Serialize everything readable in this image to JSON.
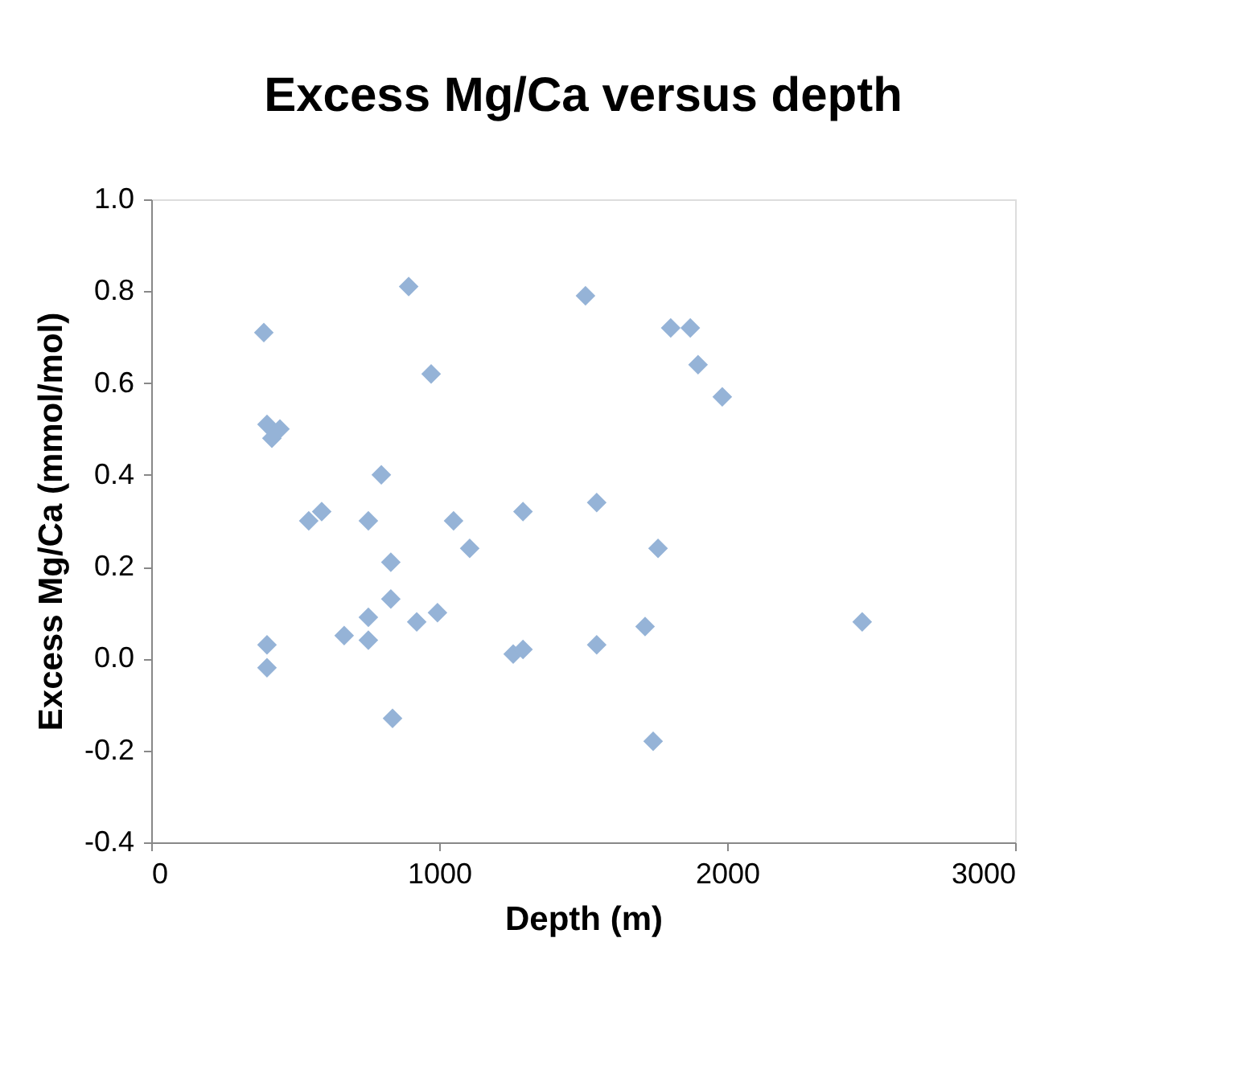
{
  "chart_data": {
    "type": "scatter",
    "title": "Excess Mg/Ca versus depth",
    "xlabel": "Depth (m)",
    "ylabel": "Excess Mg/Ca (mmol/mol)",
    "x": [
      391,
      402,
      419,
      447,
      402,
      402,
      547,
      592,
      670,
      754,
      754,
      754,
      799,
      832,
      832,
      838,
      894,
      922,
      994,
      972,
      1050,
      1106,
      1257,
      1291,
      1291,
      1508,
      1547,
      1547,
      1715,
      1743,
      1760,
      1804,
      1872,
      1899,
      1983,
      2469
    ],
    "series": [
      {
        "color": "#95b3d7",
        "values": [
          0.71,
          0.51,
          0.48,
          0.5,
          0.03,
          -0.02,
          0.3,
          0.32,
          0.05,
          0.3,
          0.09,
          0.04,
          0.4,
          0.21,
          0.13,
          -0.13,
          0.81,
          0.08,
          0.1,
          0.62,
          0.3,
          0.24,
          0.01,
          0.02,
          0.32,
          0.79,
          0.34,
          0.03,
          0.07,
          -0.18,
          0.24,
          0.72,
          0.72,
          0.64,
          0.57,
          0.08
        ]
      }
    ],
    "xlim": [
      0,
      3000
    ],
    "xticks": [
      0,
      1000,
      2000,
      3000
    ],
    "ylim": [
      -0.4,
      1.0
    ],
    "yticks": [
      {
        "value": -0.4,
        "label": "-0.4"
      },
      {
        "value": -0.2,
        "label": "-0.2"
      },
      {
        "value": 0,
        "label": "0.0"
      },
      {
        "value": 0.2,
        "label": "0.2"
      },
      {
        "value": 0.4,
        "label": "0.4"
      },
      {
        "value": 0.6,
        "label": "0.6"
      },
      {
        "value": 0.8,
        "label": "0.8"
      },
      {
        "value": 1.0,
        "label": "1.0"
      }
    ],
    "grid": false,
    "marker": "diamond"
  }
}
